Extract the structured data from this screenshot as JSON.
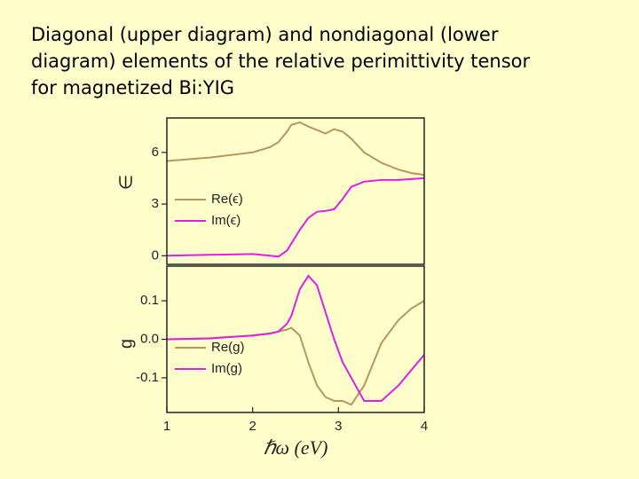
{
  "title": [
    "Diagonal (upper diagram) and nondiagonal (lower",
    "diagram) elements of the relative perimittivity tensor",
    "for magnetized Bi:YIG"
  ],
  "chart_data": [
    {
      "type": "line",
      "ylabel": "∈",
      "x": [
        1,
        1.5,
        2,
        2.2,
        2.3,
        2.4,
        2.45,
        2.55,
        2.65,
        2.75,
        2.85,
        2.95,
        3.05,
        3.15,
        3.3,
        3.5,
        3.7,
        3.85,
        4
      ],
      "series": [
        {
          "name": "Re(ϵ)",
          "color": "#b8955c",
          "values": [
            5.5,
            5.7,
            6.0,
            6.3,
            6.6,
            7.2,
            7.6,
            7.75,
            7.5,
            7.3,
            7.1,
            7.35,
            7.2,
            6.8,
            6.0,
            5.4,
            5.0,
            4.8,
            4.7
          ]
        },
        {
          "name": "Im(ϵ)",
          "color": "#e020e0",
          "values": [
            0.0,
            0.05,
            0.1,
            0.0,
            -0.05,
            0.3,
            0.7,
            1.5,
            2.2,
            2.55,
            2.6,
            2.7,
            3.3,
            4.0,
            4.3,
            4.4,
            4.4,
            4.45,
            4.5
          ]
        }
      ],
      "xlim": [
        1,
        4
      ],
      "ylim": [
        -0.5,
        8
      ],
      "yticks": [
        0,
        3,
        6
      ],
      "legend": "left"
    },
    {
      "type": "line",
      "ylabel": "g",
      "xlabel": "ℏω (eV)",
      "x": [
        1,
        1.5,
        2,
        2.2,
        2.3,
        2.4,
        2.45,
        2.55,
        2.65,
        2.75,
        2.85,
        2.95,
        3.05,
        3.15,
        3.3,
        3.5,
        3.7,
        3.85,
        4
      ],
      "series": [
        {
          "name": "Re(g)",
          "color": "#b8955c",
          "values": [
            0.0,
            0.003,
            0.01,
            0.015,
            0.02,
            0.025,
            0.03,
            0.01,
            -0.06,
            -0.12,
            -0.15,
            -0.16,
            -0.16,
            -0.17,
            -0.12,
            -0.01,
            0.05,
            0.08,
            0.1
          ]
        },
        {
          "name": "Im(g)",
          "color": "#e020e0",
          "values": [
            0.0,
            0.002,
            0.01,
            0.015,
            0.02,
            0.04,
            0.06,
            0.13,
            0.165,
            0.14,
            0.07,
            0.0,
            -0.06,
            -0.1,
            -0.16,
            -0.16,
            -0.12,
            -0.08,
            -0.04
          ]
        }
      ],
      "xlim": [
        1,
        4
      ],
      "ylim": [
        -0.19,
        0.19
      ],
      "xticks": [
        1,
        2,
        3,
        4
      ],
      "yticks": [
        -0.1,
        {
          "value": 0,
          "label": "0.0"
        },
        0.1
      ],
      "legend": "left"
    }
  ]
}
